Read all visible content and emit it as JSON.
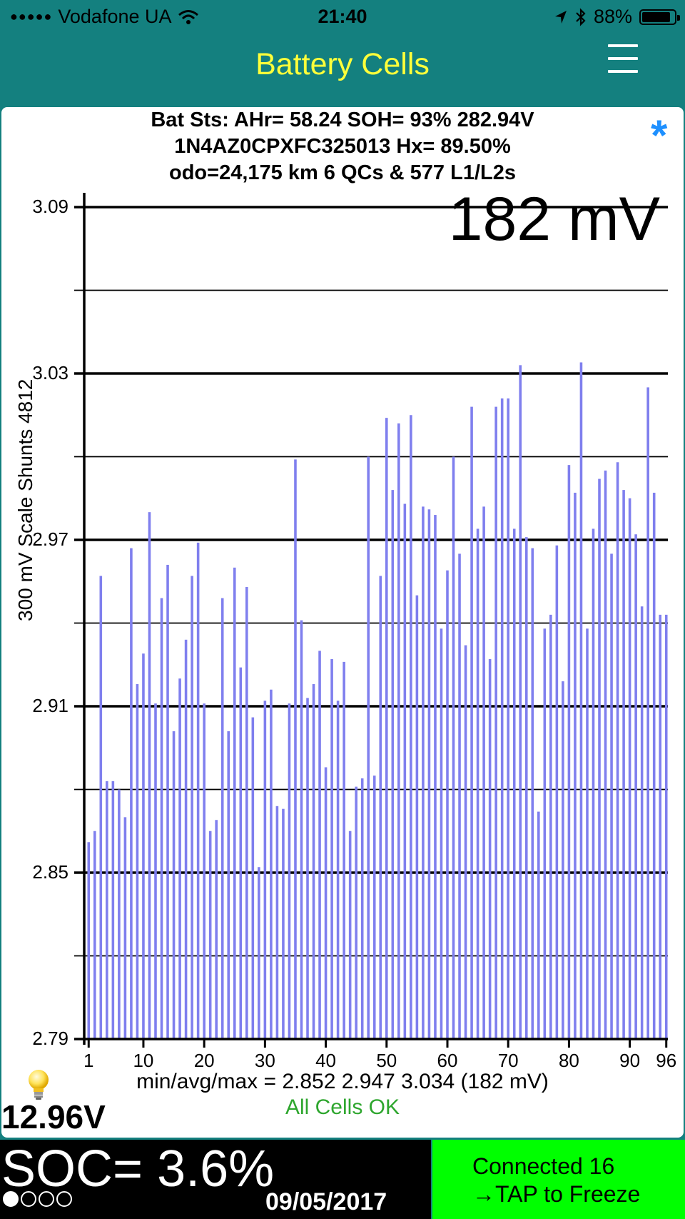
{
  "status_bar": {
    "signal_dots": "●●●●●",
    "carrier": "Vodafone UA",
    "time": "21:40",
    "battery_percent": "88%",
    "battery_level": 0.88,
    "icons": [
      "wifi-icon",
      "location-arrow-icon",
      "bluetooth-icon",
      "battery-icon"
    ]
  },
  "header": {
    "title": "Battery Cells",
    "menu_icon": "hamburger-menu-icon"
  },
  "info": {
    "line1": "Bat Sts:  AHr= 58.24  SOH= 93%   282.94V",
    "line2": "1N4AZ0CPXFC325013   Hx= 89.50%",
    "line3": "odo=24,175 km 6 QCs & 577 L1/L2s",
    "star": "*"
  },
  "chart": {
    "spread_label": "182 mV",
    "y_axis_title": "300 mV Scale   Shunts 4812"
  },
  "chart_data": {
    "type": "bar",
    "ylabel": "300 mV Scale   Shunts 4812",
    "ylim": [
      2.79,
      3.09
    ],
    "y_ticks": [
      "3.09",
      "3.03",
      "2.97",
      "2.91",
      "2.85",
      "2.79"
    ],
    "x_ticks": [
      "1",
      "10",
      "20",
      "30",
      "40",
      "50",
      "60",
      "70",
      "80",
      "90",
      "96"
    ],
    "grid": true,
    "x": [
      1,
      2,
      3,
      4,
      5,
      6,
      7,
      8,
      9,
      10,
      11,
      12,
      13,
      14,
      15,
      16,
      17,
      18,
      19,
      20,
      21,
      22,
      23,
      24,
      25,
      26,
      27,
      28,
      29,
      30,
      31,
      32,
      33,
      34,
      35,
      36,
      37,
      38,
      39,
      40,
      41,
      42,
      43,
      44,
      45,
      46,
      47,
      48,
      49,
      50,
      51,
      52,
      53,
      54,
      55,
      56,
      57,
      58,
      59,
      60,
      61,
      62,
      63,
      64,
      65,
      66,
      67,
      68,
      69,
      70,
      71,
      72,
      73,
      74,
      75,
      76,
      77,
      78,
      79,
      80,
      81,
      82,
      83,
      84,
      85,
      86,
      87,
      88,
      89,
      90,
      91,
      92,
      93,
      94,
      95,
      96
    ],
    "values": [
      2.861,
      2.865,
      2.957,
      2.883,
      2.883,
      2.88,
      2.87,
      2.967,
      2.918,
      2.929,
      2.98,
      2.911,
      2.949,
      2.961,
      2.901,
      2.92,
      2.934,
      2.957,
      2.969,
      2.911,
      2.865,
      2.869,
      2.949,
      2.901,
      2.96,
      2.924,
      2.953,
      2.906,
      2.852,
      2.912,
      2.916,
      2.874,
      2.873,
      2.911,
      2.999,
      2.941,
      2.913,
      2.918,
      2.93,
      2.888,
      2.927,
      2.912,
      2.926,
      2.865,
      2.881,
      2.884,
      3.0,
      2.885,
      2.957,
      3.014,
      2.988,
      3.012,
      2.983,
      3.015,
      2.95,
      2.982,
      2.981,
      2.979,
      2.938,
      2.959,
      3.0,
      2.965,
      2.932,
      3.018,
      2.974,
      2.982,
      2.927,
      3.018,
      3.021,
      3.021,
      2.974,
      3.033,
      2.971,
      2.967,
      2.872,
      2.938,
      2.943,
      2.968,
      2.919,
      2.997,
      2.987,
      3.034,
      2.938,
      2.974,
      2.992,
      2.995,
      2.965,
      2.998,
      2.988,
      2.985,
      2.972,
      2.946,
      3.025,
      2.987,
      2.943,
      2.943
    ]
  },
  "bottom": {
    "bulb_icon": "light-bulb-icon",
    "aux_voltage": "12.96V",
    "stats": "min/avg/max = 2.852 2.947 3.034  (182 mV)",
    "cells_status": "All Cells OK",
    "soc": "SOC= 3.6%",
    "date": "09/05/2017",
    "page_dots": [
      true,
      false,
      false,
      false
    ],
    "freeze_line1": "Connected 16",
    "freeze_line2": "→TAP to Freeze",
    "colors": {
      "bars": "#7f7fee",
      "ok_text": "#2ea62e",
      "freeze_bg": "#00ff00",
      "header_bg": "#14807f",
      "title": "#ffff3a",
      "star": "#1e90ff"
    }
  }
}
